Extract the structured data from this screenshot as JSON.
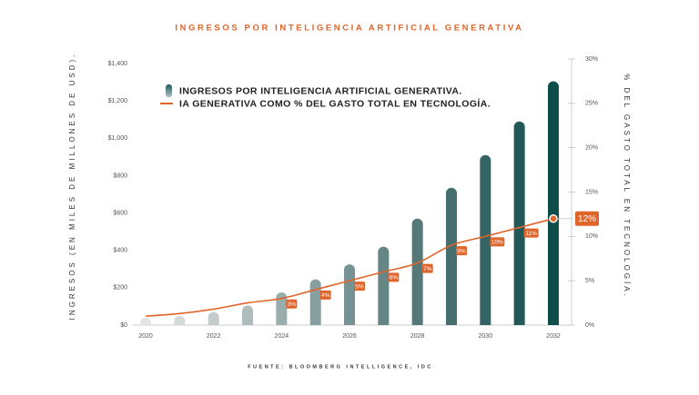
{
  "chart_data": {
    "type": "bar-line",
    "title": "INGRESOS POR INTELIGENCIA ARTIFICIAL GENERATIVA",
    "y_label": "INGRESOS (EN MILES DE MILLONES DE USD).",
    "y2_label": "% DEL GASTO TOTAL EN TECNOLOGÍA.",
    "source": "FUENTE: BLOOMBERG INTELLIGENCE, IDC",
    "x": [
      2020,
      2021,
      2022,
      2023,
      2024,
      2025,
      2026,
      2027,
      2028,
      2029,
      2030,
      2031,
      2032
    ],
    "xlim": [
      2019.75,
      2032.25
    ],
    "xticks": [
      2020,
      2022,
      2024,
      2026,
      2028,
      2030,
      2032
    ],
    "ylim": [
      0,
      1400
    ],
    "yticks": [
      {
        "value": 0,
        "label": "$0"
      },
      {
        "value": 200,
        "label": "$200"
      },
      {
        "value": 400,
        "label": "$400"
      },
      {
        "value": 600,
        "label": "$600"
      },
      {
        "value": 800,
        "label": "$800"
      },
      {
        "value": 1000,
        "label": "$1,000"
      },
      {
        "value": 1200,
        "label": "$1,200"
      },
      {
        "value": 1400,
        "label": "$1,400"
      }
    ],
    "y2lim": [
      0,
      30
    ],
    "y2ticks": [
      {
        "value": 0,
        "label": "0%"
      },
      {
        "value": 5,
        "label": "5%"
      },
      {
        "value": 10,
        "label": "10%"
      },
      {
        "value": 15,
        "label": "15%"
      },
      {
        "value": 20,
        "label": "20%"
      },
      {
        "value": 25,
        "label": "25%"
      },
      {
        "value": 30,
        "label": "30%"
      }
    ],
    "series": [
      {
        "name": "INGRESOS POR INTELIGENCIA ARTIFICIAL GENERATIVA.",
        "type": "bar",
        "colors": [
          "#e2e4e4",
          "#d3d8d8",
          "#c3cbcb",
          "#afbcbc",
          "#9aadad",
          "#879f9f",
          "#769292",
          "#668585",
          "#557979",
          "#466e6e",
          "#356464",
          "#235858",
          "#0f4d4b"
        ],
        "values": [
          40,
          50,
          70,
          105,
          175,
          245,
          325,
          420,
          570,
          735,
          910,
          1090,
          1305
        ]
      },
      {
        "name": "IA GENERATIVA COMO % DEL GASTO TOTAL EN TECNOLOGÍA.",
        "type": "line",
        "axis": "y2",
        "color": "#e0652b",
        "values": [
          1,
          1.3,
          1.8,
          2.5,
          3,
          4,
          5,
          6,
          7,
          9,
          10,
          11,
          12
        ],
        "value_labels": [
          null,
          null,
          null,
          null,
          "3%",
          "4%",
          "5%",
          "6%",
          "7%",
          "9%",
          "10%",
          "11%",
          "12%"
        ]
      }
    ]
  }
}
